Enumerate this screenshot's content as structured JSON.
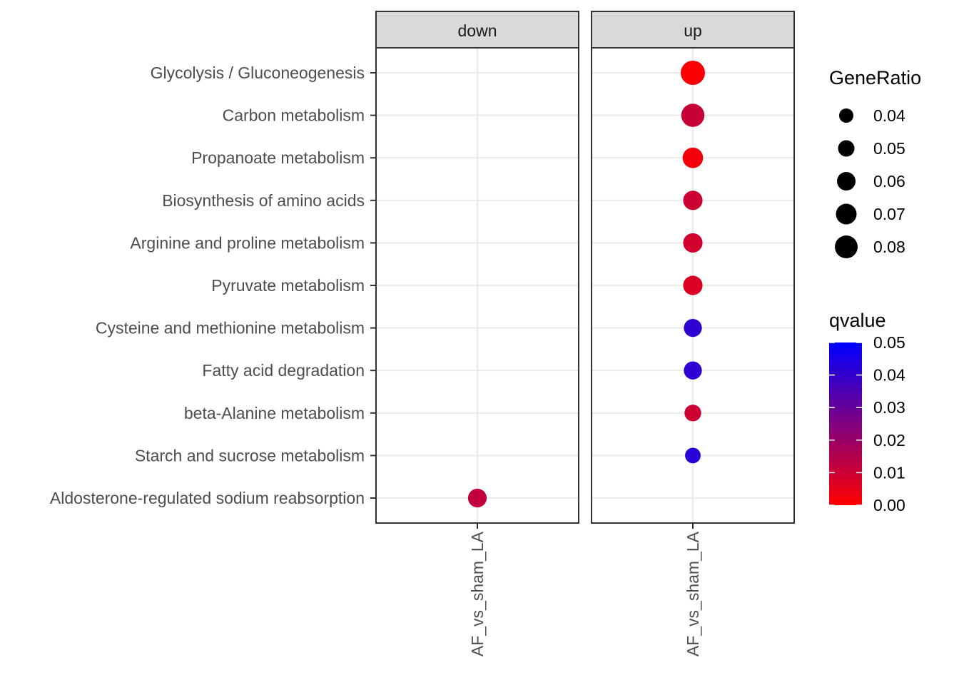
{
  "chart_data": {
    "type": "scatter",
    "title": "",
    "xlabel": "",
    "ylabel": "",
    "x_category": "AF_vs_sham_LA",
    "facets": [
      "down",
      "up"
    ],
    "categories": [
      "Glycolysis / Gluconeogenesis",
      "Carbon metabolism",
      "Propanoate metabolism",
      "Biosynthesis of amino acids",
      "Arginine and proline metabolism",
      "Pyruvate metabolism",
      "Cysteine and methionine metabolism",
      "Fatty acid degradation",
      "beta-Alanine metabolism",
      "Starch and sucrose metabolism",
      "Aldosterone-regulated sodium reabsorption"
    ],
    "points": [
      {
        "facet": "up",
        "pathway": "Glycolysis / Gluconeogenesis",
        "gene_ratio": 0.085,
        "qvalue": 0.001
      },
      {
        "facet": "up",
        "pathway": "Carbon metabolism",
        "gene_ratio": 0.08,
        "qvalue": 0.011
      },
      {
        "facet": "up",
        "pathway": "Propanoate metabolism",
        "gene_ratio": 0.068,
        "qvalue": 0.002
      },
      {
        "facet": "up",
        "pathway": "Biosynthesis of amino acids",
        "gene_ratio": 0.063,
        "qvalue": 0.01
      },
      {
        "facet": "up",
        "pathway": "Arginine and proline metabolism",
        "gene_ratio": 0.063,
        "qvalue": 0.009
      },
      {
        "facet": "up",
        "pathway": "Pyruvate metabolism",
        "gene_ratio": 0.063,
        "qvalue": 0.007
      },
      {
        "facet": "up",
        "pathway": "Cysteine and methionine metabolism",
        "gene_ratio": 0.057,
        "qvalue": 0.041
      },
      {
        "facet": "up",
        "pathway": "Fatty acid degradation",
        "gene_ratio": 0.057,
        "qvalue": 0.041
      },
      {
        "facet": "up",
        "pathway": "beta-Alanine metabolism",
        "gene_ratio": 0.051,
        "qvalue": 0.01
      },
      {
        "facet": "up",
        "pathway": "Starch and sucrose metabolism",
        "gene_ratio": 0.046,
        "qvalue": 0.042
      },
      {
        "facet": "down",
        "pathway": "Aldosterone-regulated sodium reabsorption",
        "gene_ratio": 0.06,
        "qvalue": 0.012
      }
    ],
    "size_legend": {
      "title": "GeneRatio",
      "labels": [
        "0.04",
        "0.05",
        "0.06",
        "0.07",
        "0.08"
      ],
      "values": [
        0.04,
        0.05,
        0.06,
        0.07,
        0.08
      ]
    },
    "color_legend": {
      "title": "qvalue",
      "labels": [
        "0.05",
        "0.04",
        "0.03",
        "0.02",
        "0.01",
        "0.00"
      ],
      "values": [
        0.05,
        0.04,
        0.03,
        0.02,
        0.01,
        0.0
      ],
      "range": [
        0.0,
        0.05
      ],
      "low_color": "#ff0000",
      "high_color": "#0000ff"
    },
    "grid": true,
    "legend_position": "right",
    "colors": {
      "panel_border": "#333333",
      "strip_fill": "#d9d9d9",
      "gridline": "#ebebeb",
      "tick_text": "#4d4d4d"
    }
  }
}
